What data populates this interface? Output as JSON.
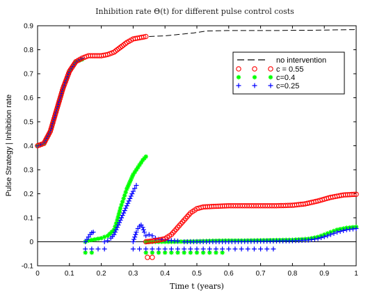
{
  "chart_data": {
    "type": "scatter",
    "title": "Inhibition rate Θ(t) for different pulse control costs",
    "xlabel": "Time t (years)",
    "ylabel": "Pulse Strategy | Inhibition rate",
    "xlim": [
      0,
      1
    ],
    "ylim": [
      -0.1,
      0.9
    ],
    "xticks": [
      "0",
      "0.1",
      "0.2",
      "0.3",
      "0.4",
      "0.5",
      "0.6",
      "0.7",
      "0.8",
      "0.9",
      "1"
    ],
    "yticks": [
      "-0.1",
      "0",
      "0.1",
      "0.2",
      "0.3",
      "0.4",
      "0.5",
      "0.6",
      "0.7",
      "0.8",
      "0.9"
    ],
    "grid": false,
    "legend_position": "top-right",
    "series": [
      {
        "name": "no intervention",
        "style": "dashed-line",
        "color": "#000000",
        "x": [
          0.35,
          0.38,
          0.4,
          0.43,
          0.46,
          0.49,
          0.51,
          0.53,
          0.56,
          0.6,
          0.65,
          0.7,
          0.75,
          0.8,
          0.85,
          0.9,
          0.95,
          1.0
        ],
        "y": [
          0.855,
          0.857,
          0.858,
          0.862,
          0.866,
          0.87,
          0.874,
          0.878,
          0.879,
          0.88,
          0.88,
          0.88,
          0.88,
          0.881,
          0.881,
          0.882,
          0.883,
          0.884
        ]
      },
      {
        "name": "c = 0.55",
        "marker": "circle",
        "color": "#ff0000",
        "curves": [
          {
            "x": [
              0.0,
              0.02,
              0.04,
              0.06,
              0.08,
              0.1,
              0.12,
              0.14,
              0.16,
              0.18,
              0.2,
              0.22,
              0.24,
              0.26,
              0.28,
              0.3,
              0.32,
              0.34
            ],
            "y": [
              0.4,
              0.41,
              0.46,
              0.55,
              0.64,
              0.71,
              0.75,
              0.765,
              0.775,
              0.775,
              0.775,
              0.78,
              0.79,
              0.81,
              0.83,
              0.845,
              0.85,
              0.855
            ]
          },
          {
            "x": [
              0.34,
              0.36,
              0.38,
              0.4,
              0.42,
              0.44,
              0.46,
              0.48,
              0.5,
              0.52,
              0.56,
              0.6,
              0.65,
              0.7,
              0.75,
              0.8,
              0.84,
              0.88,
              0.92,
              0.96,
              1.0
            ],
            "y": [
              0.0,
              0.003,
              0.007,
              0.013,
              0.03,
              0.06,
              0.09,
              0.12,
              0.138,
              0.145,
              0.148,
              0.15,
              0.15,
              0.15,
              0.15,
              0.152,
              0.158,
              0.17,
              0.185,
              0.195,
              0.198
            ]
          },
          {
            "x": [
              0.345,
              0.36
            ],
            "y": [
              -0.065,
              -0.065
            ]
          }
        ]
      },
      {
        "name": "c=0.4",
        "marker": "star",
        "color": "#00ff00",
        "curves": [
          {
            "x": [
              0.0,
              0.02,
              0.04,
              0.06,
              0.08,
              0.1,
              0.12,
              0.14
            ],
            "y": [
              0.4,
              0.41,
              0.46,
              0.55,
              0.64,
              0.71,
              0.75,
              0.76
            ]
          },
          {
            "x": [
              0.15,
              0.16,
              0.18,
              0.2,
              0.22,
              0.24,
              0.25,
              0.26,
              0.27,
              0.28,
              0.29,
              0.3,
              0.31,
              0.32,
              0.33,
              0.34
            ],
            "y": [
              0.0,
              0.005,
              0.01,
              0.015,
              0.025,
              0.05,
              0.09,
              0.14,
              0.18,
              0.22,
              0.25,
              0.28,
              0.3,
              0.32,
              0.34,
              0.355
            ]
          },
          {
            "x": [
              0.34,
              0.38,
              0.42,
              0.46,
              0.5,
              0.55,
              0.6,
              0.65,
              0.7,
              0.75,
              0.8,
              0.85,
              0.88,
              0.91,
              0.94,
              0.97,
              1.0
            ],
            "y": [
              0.0,
              0.0,
              0.0,
              0.001,
              0.002,
              0.004,
              0.005,
              0.005,
              0.006,
              0.007,
              0.008,
              0.012,
              0.02,
              0.035,
              0.05,
              0.058,
              0.062
            ]
          },
          {
            "x": [
              0.15,
              0.17,
              0.34,
              0.36,
              0.38,
              0.4,
              0.42,
              0.44,
              0.46,
              0.48,
              0.5,
              0.52,
              0.54,
              0.56,
              0.58
            ],
            "y": [
              -0.045,
              -0.045,
              -0.045,
              -0.045,
              -0.045,
              -0.045,
              -0.045,
              -0.045,
              -0.045,
              -0.045,
              -0.045,
              -0.045,
              -0.045,
              -0.045,
              -0.045
            ]
          }
        ]
      },
      {
        "name": "c=0.25",
        "marker": "plus",
        "color": "#0000ff",
        "curves": [
          {
            "x": [
              0.0,
              0.02,
              0.04,
              0.06,
              0.08,
              0.1,
              0.12,
              0.14
            ],
            "y": [
              0.4,
              0.41,
              0.46,
              0.55,
              0.64,
              0.71,
              0.75,
              0.765
            ]
          },
          {
            "x": [
              0.15,
              0.155,
              0.16,
              0.165,
              0.17,
              0.175
            ],
            "y": [
              0.0,
              0.01,
              0.02,
              0.03,
              0.038,
              0.04
            ]
          },
          {
            "x": [
              0.21,
              0.22,
              0.23,
              0.24,
              0.25,
              0.26,
              0.27,
              0.28,
              0.29,
              0.3,
              0.31
            ],
            "y": [
              0.0,
              0.005,
              0.015,
              0.03,
              0.06,
              0.09,
              0.12,
              0.15,
              0.18,
              0.21,
              0.235
            ]
          },
          {
            "x": [
              0.3,
              0.305,
              0.31,
              0.315,
              0.32,
              0.325,
              0.33,
              0.335,
              0.34,
              0.35,
              0.36,
              0.37,
              0.38,
              0.4,
              0.42,
              0.44
            ],
            "y": [
              0.0,
              0.02,
              0.04,
              0.055,
              0.065,
              0.07,
              0.06,
              0.04,
              0.025,
              0.03,
              0.025,
              0.015,
              0.01,
              0.008,
              0.005,
              0.003
            ]
          },
          {
            "x": [
              0.46,
              0.5,
              0.55,
              0.6,
              0.65,
              0.7,
              0.75,
              0.8,
              0.85,
              0.88,
              0.91,
              0.94,
              0.97,
              1.0
            ],
            "y": [
              0.0,
              0.0,
              0.0,
              0.0,
              0.001,
              0.002,
              0.003,
              0.004,
              0.007,
              0.013,
              0.025,
              0.04,
              0.05,
              0.055
            ]
          },
          {
            "x": [
              0.15,
              0.17,
              0.19,
              0.21,
              0.3,
              0.32,
              0.34,
              0.36,
              0.38,
              0.4,
              0.42,
              0.44,
              0.46,
              0.48,
              0.5,
              0.52,
              0.54,
              0.56,
              0.58,
              0.6,
              0.62,
              0.64,
              0.66,
              0.68,
              0.7,
              0.72,
              0.74
            ],
            "y": [
              -0.03,
              -0.03,
              -0.03,
              -0.03,
              -0.03,
              -0.03,
              -0.03,
              -0.03,
              -0.03,
              -0.03,
              -0.03,
              -0.03,
              -0.03,
              -0.03,
              -0.03,
              -0.03,
              -0.03,
              -0.03,
              -0.03,
              -0.03,
              -0.03,
              -0.03,
              -0.03,
              -0.03,
              -0.03,
              -0.03,
              -0.03
            ]
          }
        ]
      }
    ]
  }
}
